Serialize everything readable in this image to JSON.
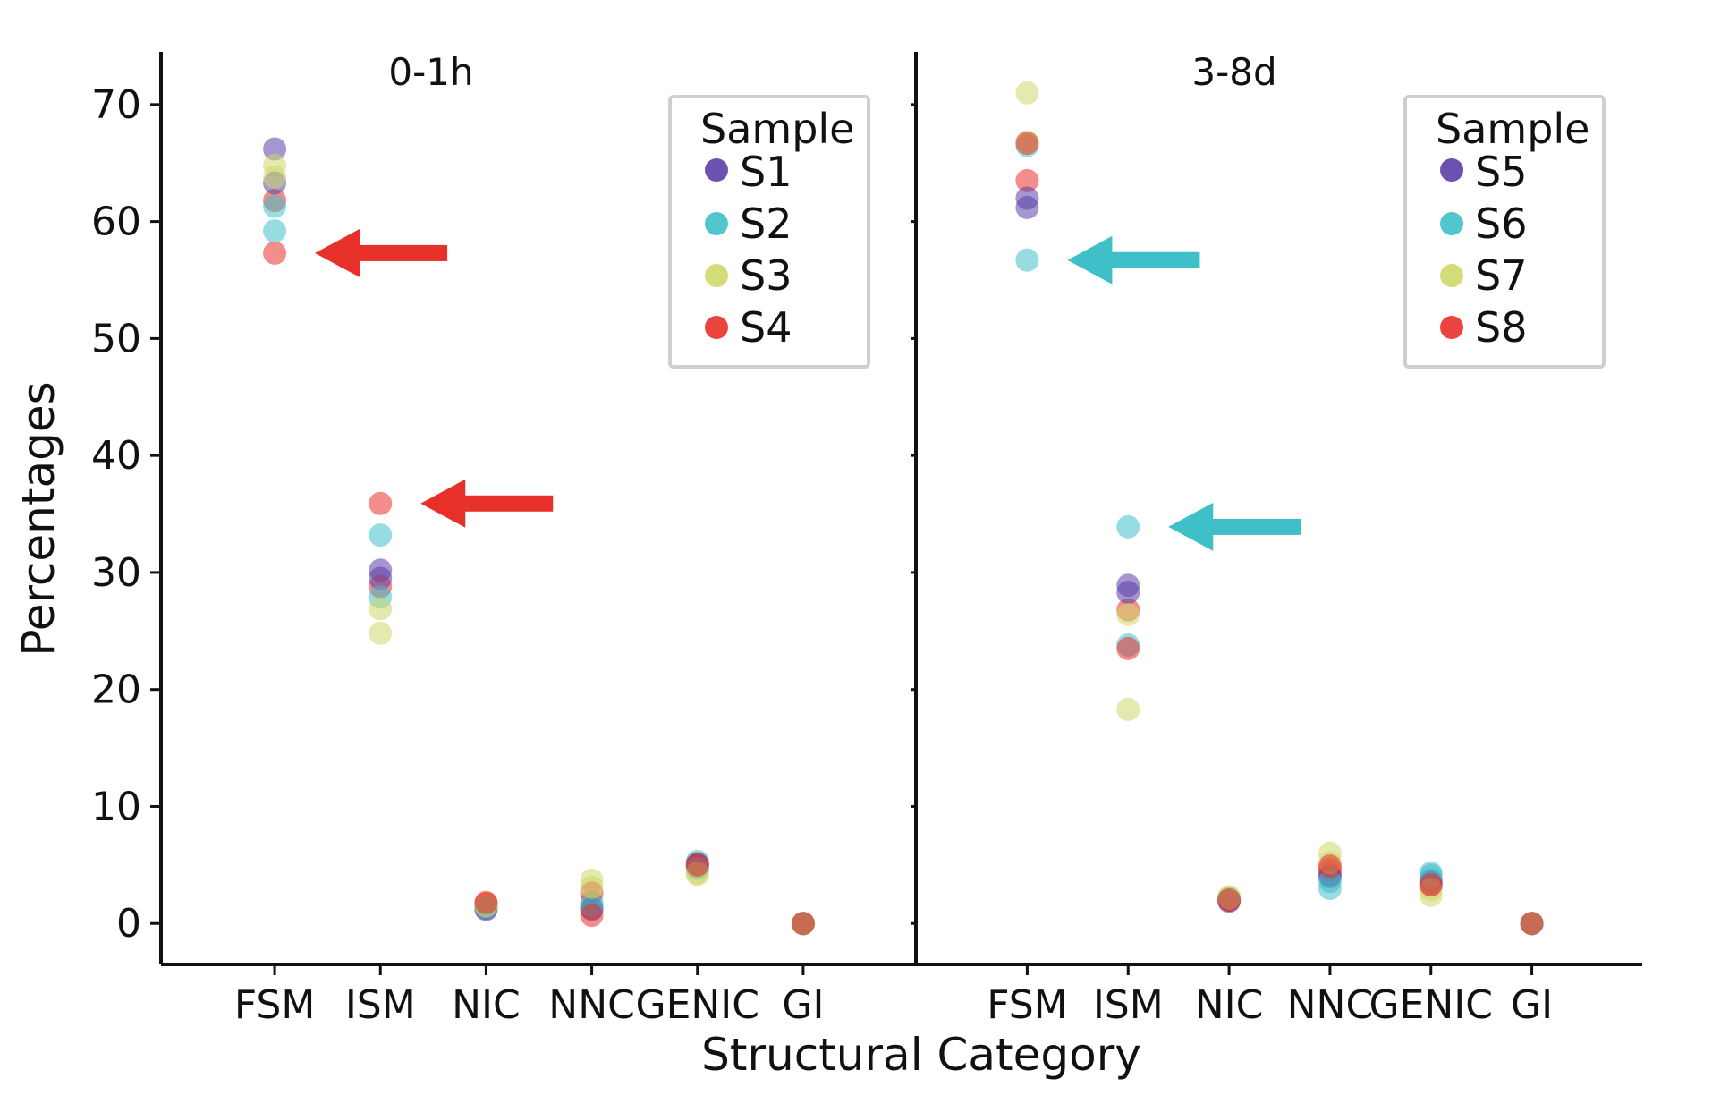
{
  "chart_data": {
    "type": "scatter",
    "xlabel": "Structural Category",
    "ylabel": "Percentages",
    "ylim": [
      -3.5,
      74.5
    ],
    "yticks": [
      0,
      10,
      20,
      30,
      40,
      50,
      60,
      70
    ],
    "categories": [
      "FSM",
      "ISM",
      "NIC",
      "NNC",
      "GENIC",
      "GI"
    ],
    "legend_position": "top-right",
    "panels": [
      {
        "title": "0-1h",
        "legend_title": "Sample",
        "series": [
          {
            "name": "S1",
            "color": "#5b3fa8",
            "values": [
              66.2,
              30.2,
              1.2,
              1.3,
              5.0,
              0.0
            ]
          },
          {
            "name": "S2",
            "color": "#3fc0c8",
            "values": [
              59.2,
              33.2,
              1.5,
              1.8,
              5.3,
              0.0
            ]
          },
          {
            "name": "S3",
            "color": "#cfd76a",
            "values": [
              64.8,
              24.8,
              1.6,
              3.7,
              4.2,
              0.0
            ]
          },
          {
            "name": "S4",
            "color": "#e8302a",
            "values": [
              61.8,
              28.8,
              1.7,
              2.6,
              4.9,
              0.0
            ]
          },
          {
            "name": "",
            "color": "#5b3fa8",
            "values": [
              63.3,
              29.5,
              1.3,
              1.2,
              5.1,
              0.0
            ]
          },
          {
            "name": "",
            "color": "#3fc0c8",
            "values": [
              61.3,
              27.9,
              1.4,
              1.5,
              4.7,
              0.0
            ]
          },
          {
            "name": "",
            "color": "#cfd76a",
            "values": [
              63.8,
              26.9,
              1.5,
              3.1,
              4.3,
              0.0
            ]
          },
          {
            "name": "",
            "color": "#e8302a",
            "values": [
              57.3,
              35.9,
              1.8,
              0.7,
              5.0,
              0.0
            ]
          }
        ],
        "arrows": [
          {
            "color": "#e8302a",
            "target": [
              "FSM",
              57.3
            ]
          },
          {
            "color": "#e8302a",
            "target": [
              "ISM",
              35.9
            ]
          }
        ]
      },
      {
        "title": "3-8d",
        "legend_title": "Sample",
        "series": [
          {
            "name": "S5",
            "color": "#5b3fa8",
            "values": [
              61.2,
              28.9,
              2.0,
              4.2,
              3.7,
              0.0
            ]
          },
          {
            "name": "S6",
            "color": "#3fc0c8",
            "values": [
              56.7,
              33.9,
              2.1,
              3.0,
              4.3,
              0.0
            ]
          },
          {
            "name": "S7",
            "color": "#cfd76a",
            "values": [
              71.0,
              18.3,
              2.3,
              6.0,
              2.4,
              0.0
            ]
          },
          {
            "name": "S8",
            "color": "#e8302a",
            "values": [
              63.5,
              26.8,
              2.0,
              4.6,
              3.3,
              0.0
            ]
          },
          {
            "name": "",
            "color": "#5b3fa8",
            "values": [
              62.0,
              28.3,
              1.9,
              4.0,
              3.5,
              0.0
            ]
          },
          {
            "name": "",
            "color": "#3fc0c8",
            "values": [
              66.5,
              23.8,
              2.1,
              3.6,
              4.1,
              0.0
            ]
          },
          {
            "name": "",
            "color": "#cfd76a",
            "values": [
              66.8,
              26.4,
              2.2,
              5.2,
              2.9,
              0.0
            ]
          },
          {
            "name": "",
            "color": "#e8302a",
            "values": [
              66.7,
              23.5,
              2.0,
              4.9,
              3.3,
              0.0
            ]
          }
        ],
        "arrows": [
          {
            "color": "#3fc0c8",
            "target": [
              "FSM",
              56.7
            ]
          },
          {
            "color": "#3fc0c8",
            "target": [
              "ISM",
              33.9
            ]
          }
        ]
      }
    ]
  }
}
